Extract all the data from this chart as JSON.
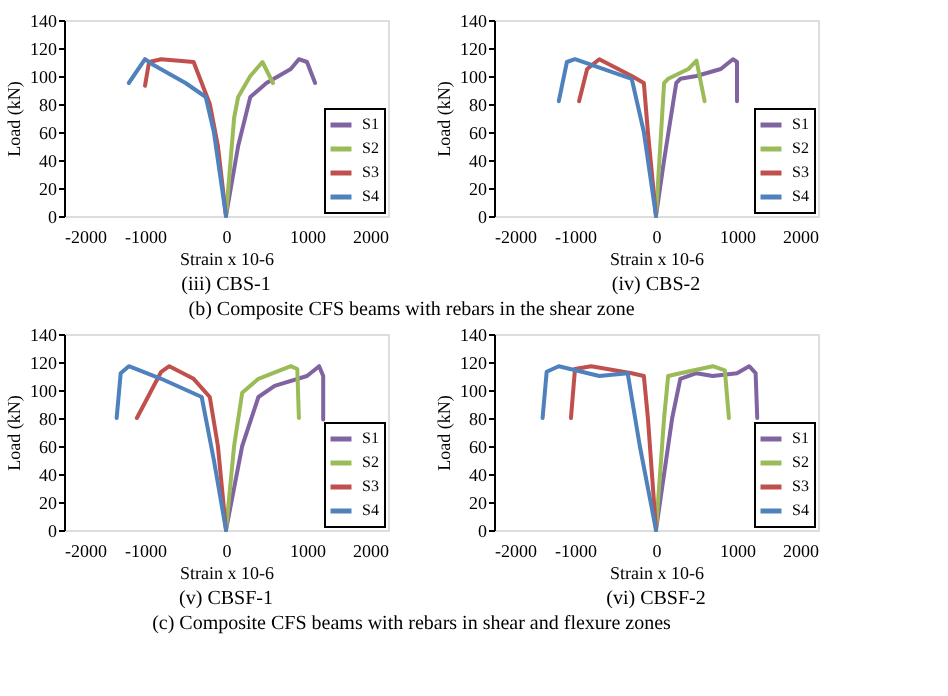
{
  "chart_data": [
    {
      "type": "line",
      "title": "(iii) CBS-1",
      "xlabel": "Strain x 10-6",
      "ylabel": "Load (kN)",
      "annotations": [
        "(b) Composite CFS beams with rebars in the shear zone"
      ],
      "xlim": [
        -2000,
        2000
      ],
      "xticks": [
        -2000,
        -1000,
        0,
        1000,
        2000
      ],
      "ylim": [
        0,
        140
      ],
      "yticks": [
        0,
        20,
        40,
        60,
        80,
        100,
        120,
        140
      ],
      "grid": false,
      "legend": "bottom right",
      "marker": "none",
      "line_style": "solid",
      "series": [
        {
          "name": "S1",
          "color": "#8064a2",
          "x": [
            0,
            150,
            300,
            500,
            800,
            900,
            1000,
            1100
          ],
          "values": [
            0,
            50,
            85,
            95,
            105,
            112,
            110,
            95
          ]
        },
        {
          "name": "S2",
          "color": "#9bbb59",
          "x": [
            0,
            100,
            150,
            300,
            450,
            580
          ],
          "values": [
            0,
            70,
            85,
            100,
            110,
            95
          ]
        },
        {
          "name": "S3",
          "color": "#c0504d",
          "x": [
            0,
            -100,
            -200,
            -300,
            -400,
            -800,
            -950,
            -1000
          ],
          "values": [
            0,
            50,
            80,
            95,
            110,
            112,
            110,
            93
          ]
        },
        {
          "name": "S4",
          "color": "#4f81bd",
          "x": [
            0,
            -150,
            -250,
            -500,
            -900,
            -1000,
            -1200
          ],
          "values": [
            0,
            60,
            85,
            95,
            108,
            112,
            95
          ]
        }
      ]
    },
    {
      "type": "line",
      "title": "(iv) CBS-2",
      "xlabel": "Strain x 10-6",
      "ylabel": "Load (kN)",
      "xlim": [
        -2000,
        2000
      ],
      "xticks": [
        -2000,
        -1000,
        0,
        1000,
        2000
      ],
      "ylim": [
        0,
        140
      ],
      "yticks": [
        0,
        20,
        40,
        60,
        80,
        100,
        120,
        140
      ],
      "grid": false,
      "legend": "bottom right",
      "marker": "none",
      "line_style": "solid",
      "series": [
        {
          "name": "S1",
          "color": "#8064a2",
          "x": [
            0,
            100,
            250,
            300,
            500,
            800,
            950,
            1000,
            1000
          ],
          "values": [
            0,
            40,
            95,
            98,
            100,
            105,
            112,
            110,
            82
          ]
        },
        {
          "name": "S2",
          "color": "#9bbb59",
          "x": [
            0,
            100,
            150,
            400,
            500,
            600
          ],
          "values": [
            0,
            95,
            98,
            105,
            111,
            82
          ]
        },
        {
          "name": "S3",
          "color": "#c0504d",
          "x": [
            0,
            -100,
            -150,
            -300,
            -700,
            -850,
            -950
          ],
          "values": [
            0,
            60,
            95,
            100,
            112,
            105,
            82
          ]
        },
        {
          "name": "S4",
          "color": "#4f81bd",
          "x": [
            0,
            -150,
            -300,
            -1000,
            -1100,
            -1200
          ],
          "values": [
            0,
            60,
            98,
            112,
            110,
            82
          ]
        }
      ]
    },
    {
      "type": "line",
      "title": "(v) CBSF-1",
      "xlabel": "Strain x 10-6",
      "ylabel": "Load (kN)",
      "annotations": [
        "(c) Composite CFS beams with rebars in shear and flexure zones"
      ],
      "xlim": [
        -2000,
        2000
      ],
      "xticks": [
        -2000,
        -1000,
        0,
        1000,
        2000
      ],
      "ylim": [
        0,
        140
      ],
      "yticks": [
        0,
        20,
        40,
        60,
        80,
        100,
        120,
        140
      ],
      "grid": false,
      "legend": "bottom right",
      "marker": "none",
      "line_style": "solid",
      "series": [
        {
          "name": "S1",
          "color": "#8064a2",
          "x": [
            0,
            200,
            400,
            600,
            1000,
            1150,
            1200,
            1200
          ],
          "values": [
            0,
            60,
            95,
            103,
            110,
            117,
            110,
            79
          ]
        },
        {
          "name": "S2",
          "color": "#9bbb59",
          "x": [
            0,
            100,
            200,
            400,
            800,
            880,
            900
          ],
          "values": [
            0,
            60,
            98,
            108,
            117,
            115,
            80
          ]
        },
        {
          "name": "S3",
          "color": "#c0504d",
          "x": [
            0,
            -100,
            -200,
            -400,
            -700,
            -800,
            -1100
          ],
          "values": [
            0,
            60,
            95,
            108,
            117,
            113,
            80
          ]
        },
        {
          "name": "S4",
          "color": "#4f81bd",
          "x": [
            0,
            -150,
            -300,
            -800,
            -1200,
            -1300,
            -1350
          ],
          "values": [
            0,
            50,
            95,
            108,
            117,
            112,
            80
          ]
        }
      ]
    },
    {
      "type": "line",
      "title": "(vi) CBSF-2",
      "xlabel": "Strain x 10-6",
      "ylabel": "Load (kN)",
      "xlim": [
        -2000,
        2000
      ],
      "xticks": [
        -2000,
        -1000,
        0,
        1000,
        2000
      ],
      "ylim": [
        0,
        140
      ],
      "yticks": [
        0,
        20,
        40,
        60,
        80,
        100,
        120,
        140
      ],
      "grid": false,
      "legend": "bottom right",
      "marker": "none",
      "line_style": "solid",
      "series": [
        {
          "name": "S1",
          "color": "#8064a2",
          "x": [
            0,
            200,
            300,
            500,
            700,
            1000,
            1150,
            1230,
            1250
          ],
          "values": [
            0,
            80,
            108,
            112,
            110,
            112,
            117,
            112,
            80
          ]
        },
        {
          "name": "S2",
          "color": "#9bbb59",
          "x": [
            0,
            100,
            150,
            300,
            700,
            850,
            900
          ],
          "values": [
            0,
            80,
            110,
            112,
            117,
            114,
            80
          ]
        },
        {
          "name": "S3",
          "color": "#c0504d",
          "x": [
            0,
            -100,
            -150,
            -300,
            -800,
            -1000,
            -1050
          ],
          "values": [
            0,
            80,
            110,
            112,
            117,
            115,
            80
          ]
        },
        {
          "name": "S4",
          "color": "#4f81bd",
          "x": [
            0,
            -200,
            -350,
            -700,
            -1200,
            -1350,
            -1400
          ],
          "values": [
            0,
            60,
            112,
            110,
            117,
            113,
            80
          ]
        }
      ]
    }
  ]
}
